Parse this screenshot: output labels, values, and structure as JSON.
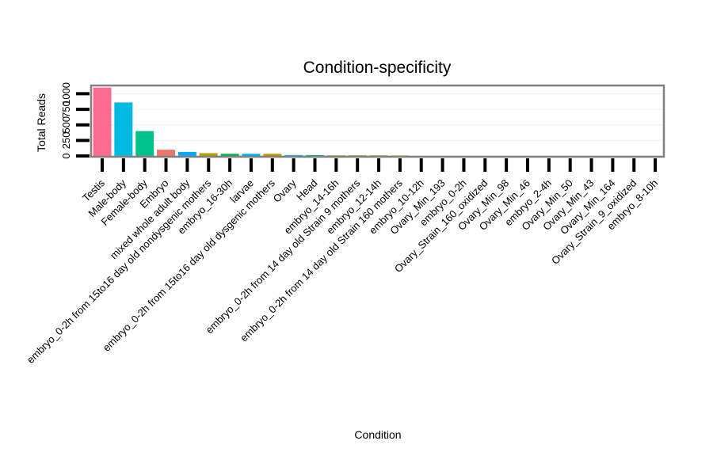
{
  "colors": {
    "panel_border": "#808080",
    "grid": "#f2f2f2",
    "tick": "#000000",
    "bar_palette": [
      "#ff6c91",
      "#00bae1",
      "#00c08b",
      "#f2756d",
      "#00abfd",
      "#bd9c00",
      "#00b44a",
      "#00b6eb",
      "#c49a00",
      "#00b8e7",
      "#00bd5c",
      "#a9a500",
      "#64b200",
      "#ae9d00",
      "#d89000"
    ]
  },
  "chart_data": {
    "type": "bar",
    "title": "Condition-specificity",
    "xlabel": "Condition",
    "ylabel": "Total Reads",
    "ylim": [
      0,
      1120
    ],
    "yticks": [
      0,
      250,
      500,
      750,
      1000
    ],
    "ytick_labels": [
      "0",
      "250",
      "500",
      "750",
      "1000"
    ],
    "grid": true,
    "categories": [
      "Testis",
      "Male-body",
      "Female-body",
      "Embryo",
      "mixed whole adult body",
      "embryo_0-2h from 15to16 day old nondysgenic mothers",
      "embryo_16-30h",
      "larvae",
      "embryo_0-2h from 15to16 day old dysgenic mothers",
      "Ovary",
      "Head",
      "embryo_14-16h",
      "embryo_0-2h from 14 day old Strain 9 mothers",
      "embryo_12-14h",
      "embryo_0-2h from 14 day old Strain 160 mothers",
      "embryo_10-12h",
      "Ovary_Min_193",
      "embryo_0-2h",
      "Ovary_Strain_160_oxidized",
      "Ovary_Min_98",
      "Ovary_Min_46",
      "embryo_2-4h",
      "Ovary_Min_50",
      "Ovary_Min_43",
      "Ovary_Min_164",
      "Ovary_Strain_9_oxidized",
      "embryo_8-10h"
    ],
    "values": [
      1100,
      860,
      400,
      100,
      65,
      45,
      35,
      35,
      35,
      15,
      15,
      10,
      10,
      10,
      8,
      0,
      0,
      0,
      0,
      0,
      0,
      0,
      0,
      0,
      0,
      0,
      0
    ]
  }
}
